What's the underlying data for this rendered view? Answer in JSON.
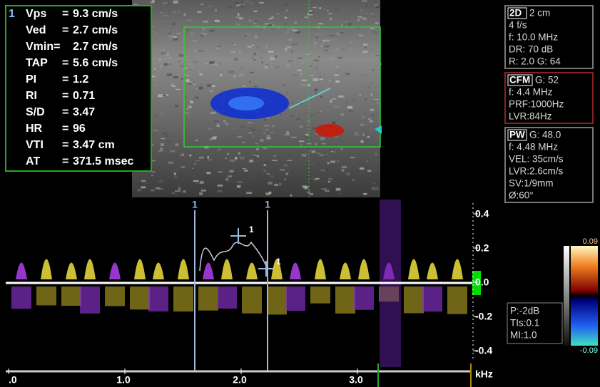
{
  "measurements": {
    "index": "1",
    "rows": [
      [
        "Vps",
        "=",
        "9.3 cm/s"
      ],
      [
        "Ved",
        "=",
        "2.7 cm/s"
      ],
      [
        "Vmin=",
        "",
        "2.7 cm/s"
      ],
      [
        "TAP",
        "=",
        "5.6 cm/s"
      ],
      [
        "PI",
        "=",
        "1.2"
      ],
      [
        "RI",
        "=",
        "0.71"
      ],
      [
        "S/D",
        "=",
        "3.47"
      ],
      [
        "HR",
        "=",
        "96"
      ],
      [
        "VTI",
        "=",
        "3.47 cm"
      ],
      [
        "AT",
        "=",
        "371.5 msec"
      ]
    ]
  },
  "panels": [
    {
      "mode": "2D",
      "head": "2 cm",
      "lines": [
        "4 f/s",
        "f: 10.0 MHz",
        "DR: 70 dB",
        "R: 2.0   G: 64"
      ]
    },
    {
      "mode": "CFM",
      "head": "G: 52",
      "lines": [
        "f: 4.4 MHz",
        "PRF:1000Hz",
        "LVR:84Hz"
      ]
    },
    {
      "mode": "PW",
      "head": "G: 48.0",
      "lines": [
        "f: 4.48 MHz",
        "VEL: 35cm/s",
        "LVR:2.6cm/s",
        "SV:1/9mm",
        "Ø:60°"
      ]
    }
  ],
  "power": [
    "P:-2dB",
    "TIs:0.1",
    "MI:1.0"
  ],
  "color_bar": {
    "top": "0.09",
    "bottom": "-0.09"
  },
  "spectrum_scale": {
    "ticks": [
      "0.4",
      "0.2",
      "0.0",
      "-0.2",
      "-0.4"
    ],
    "unit": "kHz"
  },
  "time_axis": [
    ".0",
    "1.0",
    "2.0",
    "3.0"
  ],
  "cursors": [
    "1",
    "1",
    "1",
    "1"
  ]
}
